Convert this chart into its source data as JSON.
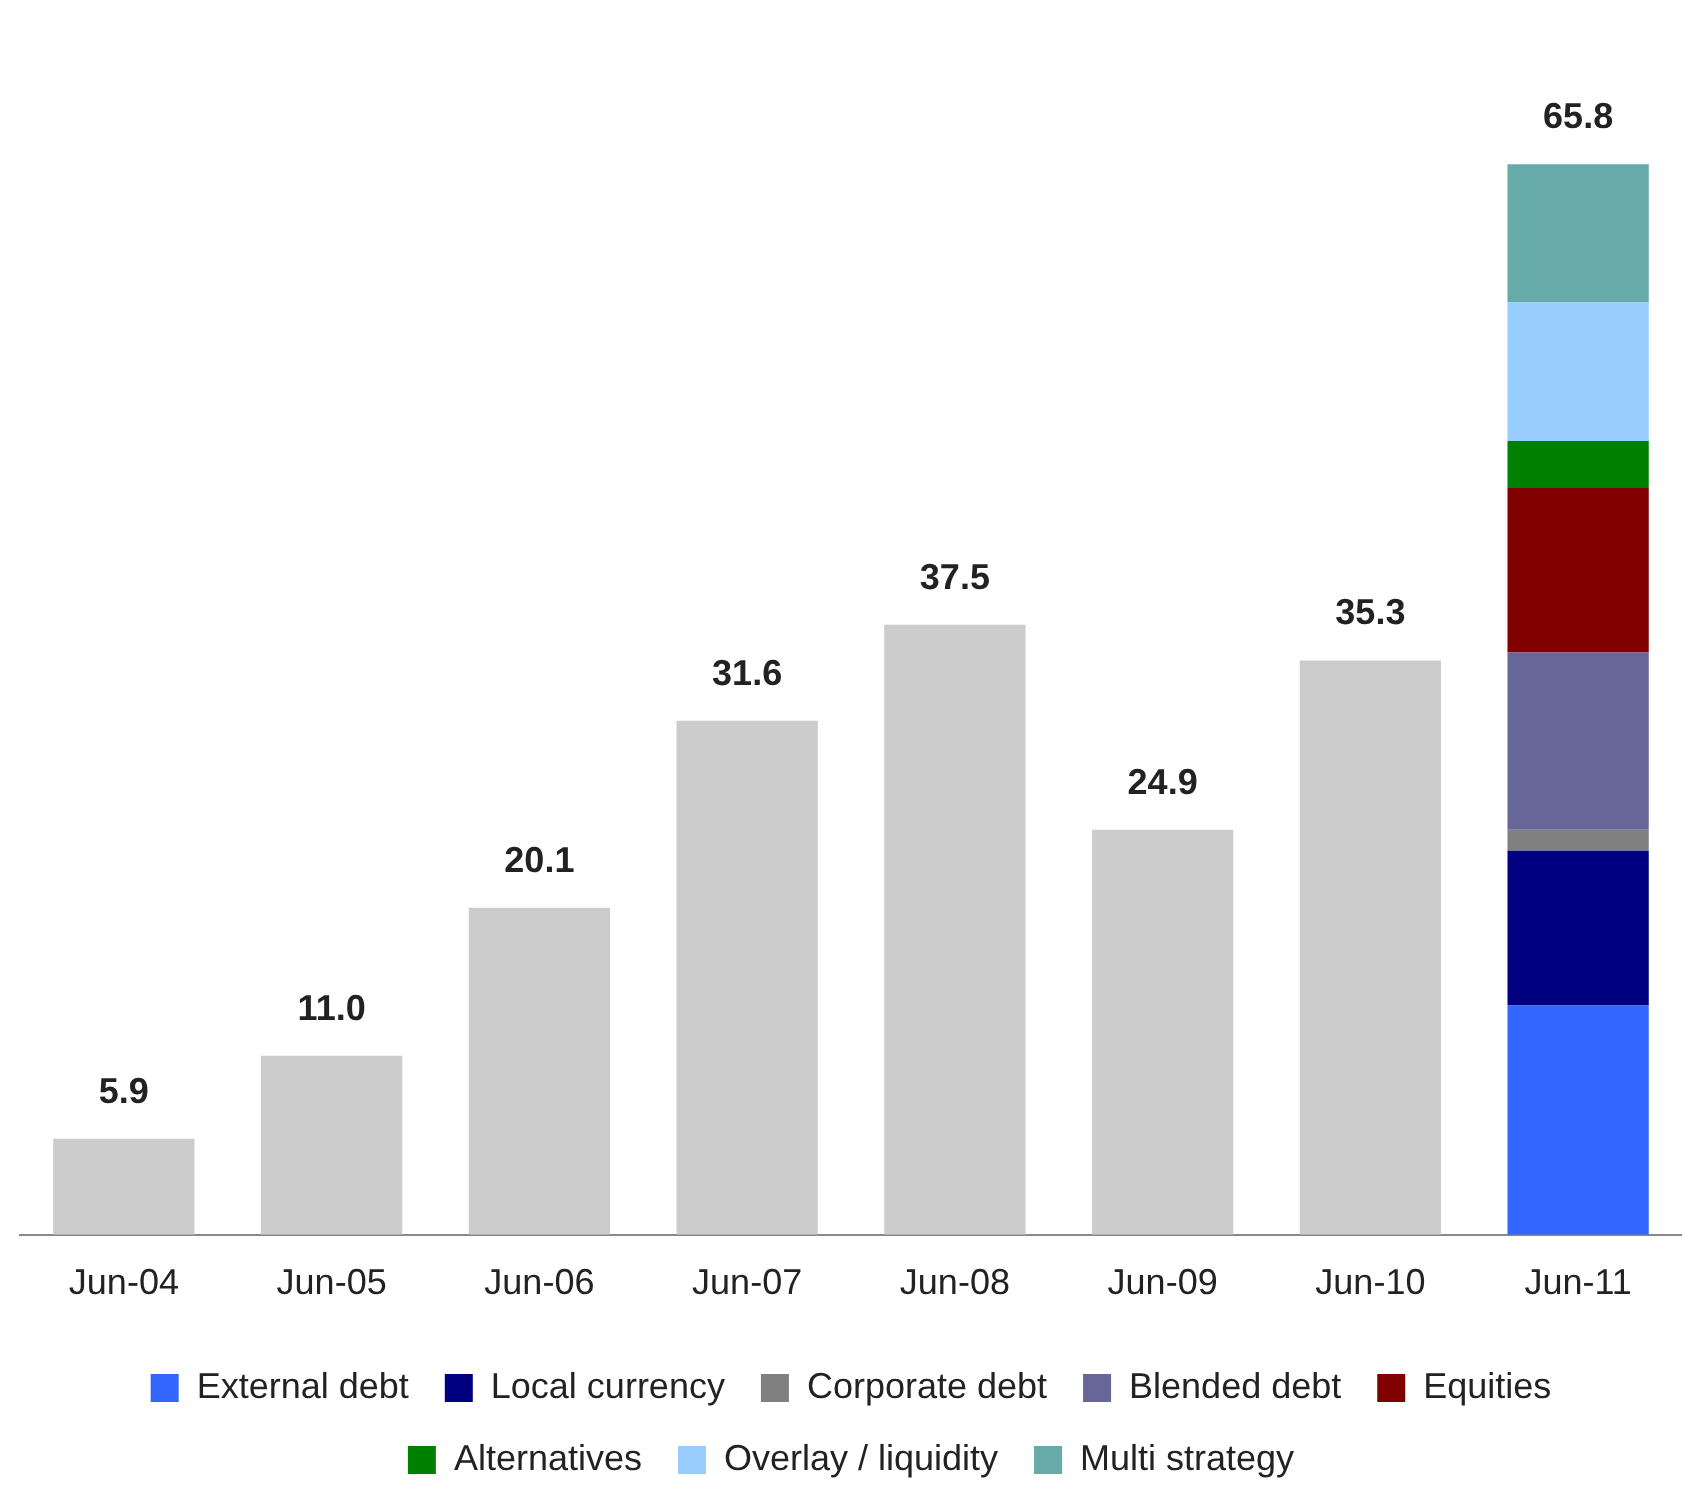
{
  "chart_data": {
    "type": "bar",
    "stacked": true,
    "grid": false,
    "legend": "bottom",
    "categories": [
      "Jun-04",
      "Jun-05",
      "Jun-06",
      "Jun-07",
      "Jun-08",
      "Jun-09",
      "Jun-10",
      "Jun-11"
    ],
    "series": [
      {
        "color": "#cccccc",
        "values": [
          5.9,
          11.0,
          20.1,
          31.6,
          37.5,
          24.9,
          35.3,
          null
        ],
        "value_labels": [
          "5.9",
          "11.0",
          "20.1",
          "31.6",
          "37.5",
          "24.9",
          "35.3",
          null
        ]
      },
      {
        "name": "External debt",
        "color": "#3366ff",
        "values": [
          null,
          null,
          null,
          null,
          null,
          null,
          null,
          14.1
        ]
      },
      {
        "name": "Local currency",
        "color": "#000080",
        "values": [
          null,
          null,
          null,
          null,
          null,
          null,
          null,
          9.5
        ]
      },
      {
        "name": "Corporate debt",
        "color": "#808080",
        "values": [
          null,
          null,
          null,
          null,
          null,
          null,
          null,
          1.3
        ]
      },
      {
        "name": "Blended debt",
        "color": "#666699",
        "values": [
          null,
          null,
          null,
          null,
          null,
          null,
          null,
          10.9
        ]
      },
      {
        "name": "Equities",
        "color": "#800000",
        "values": [
          null,
          null,
          null,
          null,
          null,
          null,
          null,
          10.1
        ]
      },
      {
        "name": "Alternatives",
        "color": "#008000",
        "values": [
          null,
          null,
          null,
          null,
          null,
          null,
          null,
          2.9
        ]
      },
      {
        "name": "Overlay / liquidity",
        "color": "#99ccff",
        "values": [
          null,
          null,
          null,
          null,
          null,
          null,
          null,
          8.5
        ]
      },
      {
        "name": "Multi strategy",
        "color": "#66aaaa",
        "values": [
          null,
          null,
          null,
          null,
          null,
          null,
          null,
          8.5
        ]
      }
    ],
    "totals": [
      null,
      null,
      null,
      null,
      null,
      null,
      null,
      "65.8"
    ]
  }
}
